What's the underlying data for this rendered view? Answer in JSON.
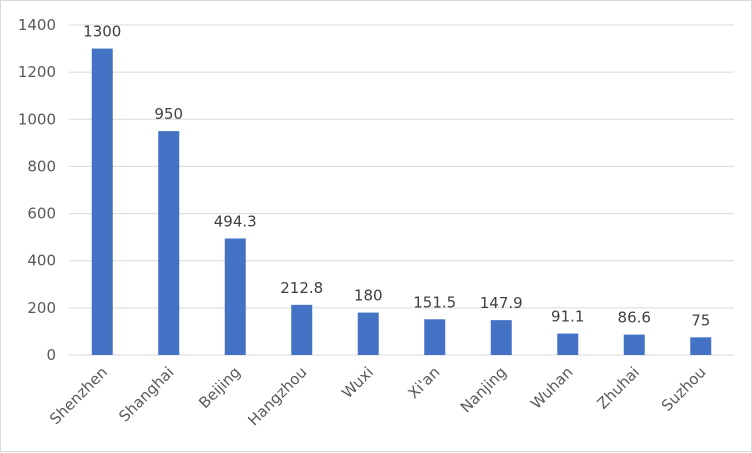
{
  "chart_data": {
    "type": "bar",
    "title": "",
    "xlabel": "",
    "ylabel": "",
    "categories": [
      "Shenzhen",
      "Shanghai",
      "Beijing",
      "Hangzhou",
      "Wuxi",
      "Xi'an",
      "Nanjing",
      "Wuhan",
      "Zhuhai",
      "Suzhou"
    ],
    "values": [
      1300,
      950,
      494.3,
      212.8,
      180,
      151.5,
      147.9,
      91.1,
      86.6,
      75
    ],
    "data_labels": [
      "1300",
      "950",
      "494.3",
      "212.8",
      "180",
      "151.5",
      "147.9",
      "91.1",
      "86.6",
      "75"
    ],
    "ylim": [
      0,
      1400
    ],
    "yticks": [
      0,
      200,
      400,
      600,
      800,
      1000,
      1200,
      1400
    ],
    "grid": true,
    "legend": "none",
    "bar_color": "#4472c4",
    "grid_color": "#d9d9d9",
    "x_tick_rotation": "45° counter-clockwise"
  }
}
